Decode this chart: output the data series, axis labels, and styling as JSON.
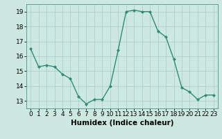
{
  "x": [
    0,
    1,
    2,
    3,
    4,
    5,
    6,
    7,
    8,
    9,
    10,
    11,
    12,
    13,
    14,
    15,
    16,
    17,
    18,
    19,
    20,
    21,
    22,
    23
  ],
  "y": [
    16.5,
    15.3,
    15.4,
    15.3,
    14.8,
    14.5,
    13.3,
    12.8,
    13.1,
    13.1,
    14.0,
    16.4,
    19.0,
    19.1,
    19.0,
    19.0,
    17.7,
    17.3,
    15.8,
    13.9,
    13.6,
    13.1,
    13.4,
    13.4
  ],
  "line_color": "#2e8b78",
  "marker": "D",
  "marker_size": 2.0,
  "bg_color": "#cde8e0",
  "grid_color": "#afd0c8",
  "xlabel": "Humidex (Indice chaleur)",
  "xlabel_fontsize": 7.5,
  "tick_fontsize": 6.5,
  "ylim": [
    12.5,
    19.5
  ],
  "xlim": [
    -0.5,
    23.5
  ],
  "yticks": [
    13,
    14,
    15,
    16,
    17,
    18,
    19
  ],
  "xticks": [
    0,
    1,
    2,
    3,
    4,
    5,
    6,
    7,
    8,
    9,
    10,
    11,
    12,
    13,
    14,
    15,
    16,
    17,
    18,
    19,
    20,
    21,
    22,
    23
  ]
}
